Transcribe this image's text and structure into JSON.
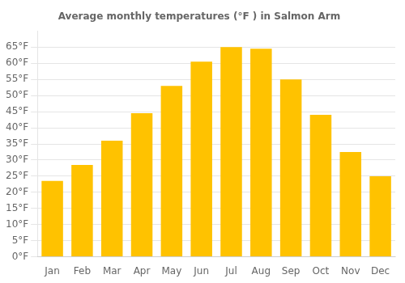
{
  "chart_data": {
    "type": "bar",
    "title": "Average monthly temperatures (°F ) in Salmon Arm",
    "categories": [
      "Jan",
      "Feb",
      "Mar",
      "Apr",
      "May",
      "Jun",
      "Jul",
      "Aug",
      "Sep",
      "Oct",
      "Nov",
      "Dec"
    ],
    "values": [
      23.5,
      28.5,
      36.0,
      44.5,
      53.0,
      60.5,
      65.0,
      64.5,
      55.0,
      44.0,
      32.5,
      25.0
    ],
    "color": "#FFC200",
    "ylim": [
      0,
      70
    ],
    "yticks": [
      {
        "value": 0,
        "label": "0°F"
      },
      {
        "value": 5,
        "label": "5°F"
      },
      {
        "value": 10,
        "label": "10°F"
      },
      {
        "value": 15,
        "label": "15°F"
      },
      {
        "value": 20,
        "label": "20°F"
      },
      {
        "value": 25,
        "label": "25°F"
      },
      {
        "value": 30,
        "label": "30°F"
      },
      {
        "value": 35,
        "label": "35°F"
      },
      {
        "value": 40,
        "label": "40°F"
      },
      {
        "value": 45,
        "label": "45°F"
      },
      {
        "value": 50,
        "label": "50°F"
      },
      {
        "value": 55,
        "label": "55°F"
      },
      {
        "value": 60,
        "label": "60°F"
      },
      {
        "value": 65,
        "label": "65°F"
      }
    ],
    "grid": true
  }
}
